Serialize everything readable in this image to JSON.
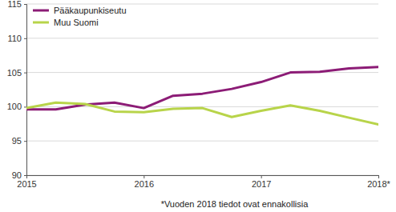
{
  "chart_data": {
    "type": "line",
    "categories": [
      "2015",
      null,
      null,
      null,
      "2016",
      null,
      null,
      null,
      "2017",
      null,
      null,
      null,
      "2018*"
    ],
    "series": [
      {
        "name": "Pääkaupunkiseutu",
        "color": "#8c1c76",
        "values": [
          99.6,
          99.6,
          100.3,
          100.6,
          99.8,
          101.6,
          101.9,
          102.6,
          103.6,
          105.0,
          105.1,
          105.6,
          105.8
        ]
      },
      {
        "name": "Muu Suomi",
        "color": "#b8d44a",
        "values": [
          99.8,
          100.6,
          100.4,
          99.3,
          99.2,
          99.7,
          99.8,
          98.5,
          99.4,
          100.2,
          99.4,
          98.4,
          97.4
        ]
      }
    ],
    "ylim": [
      90,
      115
    ],
    "yticks": [
      90,
      95,
      100,
      105,
      110,
      115
    ],
    "grid": true,
    "legend": "top-left",
    "annotations": [
      "*Vuoden 2018 tiedot ovat ennakollisia"
    ]
  }
}
